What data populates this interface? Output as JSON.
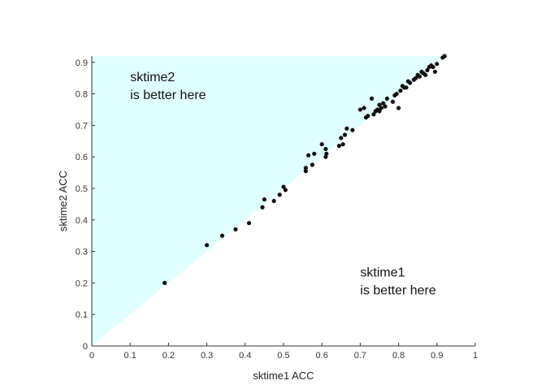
{
  "chart_data": {
    "type": "scatter",
    "xlabel": "sktime1 ACC",
    "ylabel": "sktime2 ACC",
    "xlim": [
      0,
      1
    ],
    "ylim": [
      0,
      0.92
    ],
    "xticks": [
      "0",
      "0.1",
      "0.2",
      "0.3",
      "0.4",
      "0.5",
      "0.6",
      "0.7",
      "0.8",
      "0.9",
      "1"
    ],
    "yticks": [
      "0",
      "0.1",
      "0.2",
      "0.3",
      "0.4",
      "0.5",
      "0.6",
      "0.7",
      "0.8",
      "0.9"
    ],
    "grid": false,
    "region_color": "#e0ffff",
    "point_color": "#111111",
    "annotations": [
      {
        "lines": [
          "sktime2",
          "is better here"
        ],
        "anchor": [
          0.1,
          0.84
        ]
      },
      {
        "lines": [
          "sktime1",
          "is better here"
        ],
        "anchor": [
          0.7,
          0.22
        ]
      }
    ],
    "points": [
      [
        0.19,
        0.2
      ],
      [
        0.3,
        0.32
      ],
      [
        0.34,
        0.35
      ],
      [
        0.375,
        0.37
      ],
      [
        0.41,
        0.39
      ],
      [
        0.445,
        0.44
      ],
      [
        0.45,
        0.465
      ],
      [
        0.475,
        0.46
      ],
      [
        0.49,
        0.48
      ],
      [
        0.5,
        0.505
      ],
      [
        0.505,
        0.495
      ],
      [
        0.558,
        0.555
      ],
      [
        0.558,
        0.565
      ],
      [
        0.565,
        0.605
      ],
      [
        0.575,
        0.575
      ],
      [
        0.58,
        0.61
      ],
      [
        0.6,
        0.64
      ],
      [
        0.61,
        0.6
      ],
      [
        0.61,
        0.625
      ],
      [
        0.612,
        0.61
      ],
      [
        0.645,
        0.635
      ],
      [
        0.65,
        0.66
      ],
      [
        0.655,
        0.64
      ],
      [
        0.66,
        0.67
      ],
      [
        0.665,
        0.69
      ],
      [
        0.68,
        0.685
      ],
      [
        0.7,
        0.75
      ],
      [
        0.71,
        0.755
      ],
      [
        0.715,
        0.725
      ],
      [
        0.72,
        0.73
      ],
      [
        0.73,
        0.785
      ],
      [
        0.735,
        0.735
      ],
      [
        0.74,
        0.745
      ],
      [
        0.745,
        0.75
      ],
      [
        0.75,
        0.745
      ],
      [
        0.75,
        0.765
      ],
      [
        0.755,
        0.755
      ],
      [
        0.76,
        0.77
      ],
      [
        0.765,
        0.76
      ],
      [
        0.77,
        0.785
      ],
      [
        0.785,
        0.775
      ],
      [
        0.79,
        0.795
      ],
      [
        0.795,
        0.8
      ],
      [
        0.8,
        0.755
      ],
      [
        0.805,
        0.81
      ],
      [
        0.81,
        0.825
      ],
      [
        0.815,
        0.82
      ],
      [
        0.82,
        0.82
      ],
      [
        0.825,
        0.84
      ],
      [
        0.83,
        0.835
      ],
      [
        0.84,
        0.845
      ],
      [
        0.845,
        0.85
      ],
      [
        0.85,
        0.86
      ],
      [
        0.855,
        0.855
      ],
      [
        0.86,
        0.87
      ],
      [
        0.865,
        0.865
      ],
      [
        0.87,
        0.86
      ],
      [
        0.875,
        0.875
      ],
      [
        0.88,
        0.885
      ],
      [
        0.885,
        0.89
      ],
      [
        0.89,
        0.885
      ],
      [
        0.895,
        0.87
      ],
      [
        0.9,
        0.895
      ],
      [
        0.915,
        0.915
      ],
      [
        0.92,
        0.92
      ]
    ]
  }
}
